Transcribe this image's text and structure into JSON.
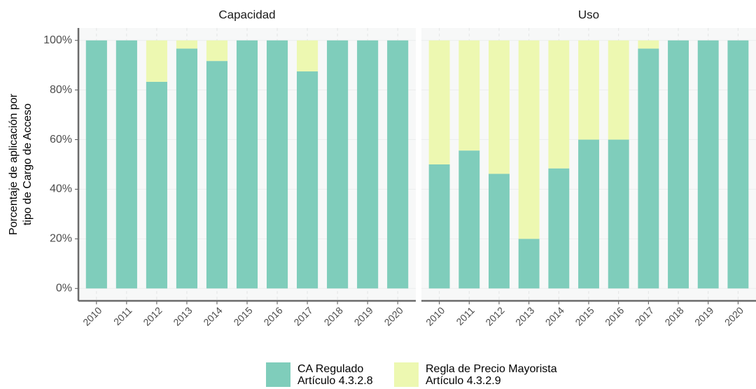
{
  "chart_data": {
    "type": "bar",
    "stacked": true,
    "facets": [
      "Capacidad",
      "Uso"
    ],
    "ylabel": [
      "Porcentaje de aplicación por",
      "tipo de Cargo de Acceso"
    ],
    "categories": [
      "2010",
      "2011",
      "2012",
      "2013",
      "2014",
      "2015",
      "2016",
      "2017",
      "2018",
      "2019",
      "2020"
    ],
    "series": [
      {
        "name": "CA Regulado\n Artículo 4.3.2.8",
        "color": "#7fcdbb",
        "values": [
          [
            100,
            100,
            83.3,
            96.7,
            91.7,
            100,
            100,
            87.5,
            100,
            100,
            100
          ],
          [
            50,
            55.6,
            46.2,
            20,
            48.4,
            60,
            60,
            96.7,
            100,
            100,
            100
          ]
        ]
      },
      {
        "name": "Regla de Precio Mayorista\n Artículo 4.3.2.9",
        "color": "#edf8b1",
        "values": [
          [
            0,
            0,
            16.7,
            3.3,
            8.3,
            0,
            0,
            12.5,
            0,
            0,
            0
          ],
          [
            50,
            44.4,
            53.8,
            80,
            51.6,
            40,
            40,
            3.3,
            0,
            0,
            0
          ]
        ]
      }
    ],
    "ylim": [
      -5,
      105
    ],
    "yticks": [
      {
        "value": 0,
        "label": "0%"
      },
      {
        "value": 20,
        "label": "20%"
      },
      {
        "value": 40,
        "label": "40%"
      },
      {
        "value": 60,
        "label": "60%"
      },
      {
        "value": 80,
        "label": "80%"
      },
      {
        "value": 100,
        "label": "100%"
      }
    ],
    "grid": true
  }
}
